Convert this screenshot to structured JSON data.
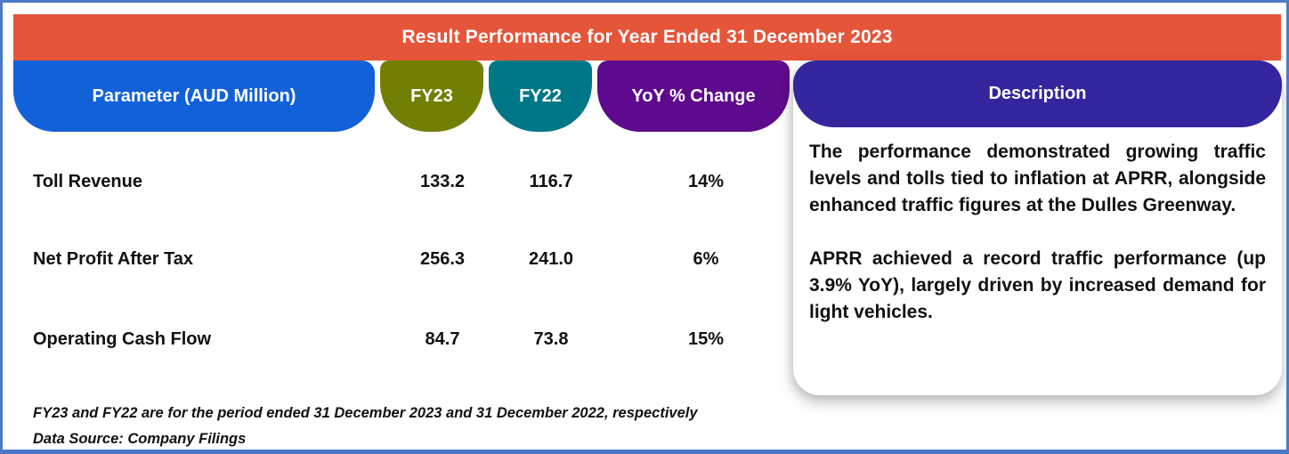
{
  "banner": {
    "title": "Result Performance for Year Ended 31 December 2023"
  },
  "columns": {
    "parameter": {
      "label": "Parameter (AUD Million)",
      "bg": "#1261D9"
    },
    "fy23": {
      "label": "FY23",
      "bg": "#718004"
    },
    "fy22": {
      "label": "FY22",
      "bg": "#007786"
    },
    "yoy": {
      "label": "YoY % Change",
      "bg": "#5E0A8C"
    },
    "description": {
      "label": "Description",
      "bg": "#33259D"
    }
  },
  "rows": [
    {
      "parameter": "Toll Revenue",
      "fy23": "133.2",
      "fy22": "116.7",
      "yoy": "14%"
    },
    {
      "parameter": "Net Profit After Tax",
      "fy23": "256.3",
      "fy22": "241.0",
      "yoy": "6%"
    },
    {
      "parameter": "Operating Cash Flow",
      "fy23": "84.7",
      "fy22": "73.8",
      "yoy": "15%"
    }
  ],
  "description": {
    "paragraphs": [
      "The performance demonstrated growing traffic levels and tolls tied to inflation at APRR, alongside enhanced traffic figures at the Dulles Greenway.",
      "APRR achieved a record traffic performance (up 3.9% YoY), largely driven by increased demand for light vehicles."
    ]
  },
  "footnotes": [
    "FY23 and FY22 are for the period ended 31 December 2023 and 31 December 2022, respectively",
    "Data Source: Company Filings"
  ],
  "colors": {
    "frame_border": "#4B79C7",
    "banner_bg": "#E5553A",
    "header_text": "#FFFFFF",
    "body_text": "#111111",
    "card_bg": "#FFFFFF"
  },
  "chart_data": {
    "type": "table",
    "title": "Result Performance for Year Ended 31 December 2023",
    "columns": [
      "Parameter (AUD Million)",
      "FY23",
      "FY22",
      "YoY % Change"
    ],
    "rows": [
      [
        "Toll Revenue",
        133.2,
        116.7,
        "14%"
      ],
      [
        "Net Profit After Tax",
        256.3,
        241.0,
        "6%"
      ],
      [
        "Operating Cash Flow",
        84.7,
        73.8,
        "15%"
      ]
    ],
    "description_column": [
      "The performance demonstrated growing traffic levels and tolls tied to inflation at APRR, alongside enhanced traffic figures at the Dulles Greenway.",
      "APRR achieved a record traffic performance (up 3.9% YoY), largely driven by increased demand for light vehicles."
    ],
    "notes": [
      "FY23 and FY22 are for the period ended 31 December 2023 and 31 December 2022, respectively",
      "Data Source: Company Filings"
    ]
  }
}
